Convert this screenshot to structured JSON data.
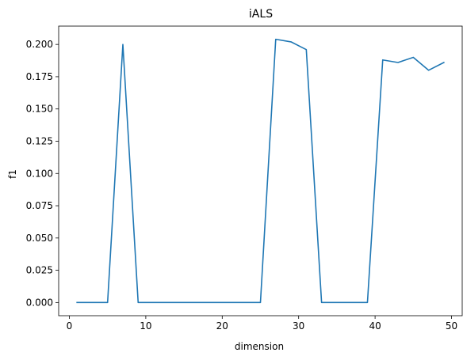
{
  "chart_data": {
    "type": "line",
    "title": "iALS",
    "xlabel": "dimension",
    "ylabel": "f1",
    "xlim": [
      -1.4,
      51.4
    ],
    "ylim": [
      -0.0102,
      0.2142
    ],
    "grid": false,
    "x_ticks": [
      0,
      10,
      20,
      30,
      40,
      50
    ],
    "x_tick_labels": [
      "0",
      "10",
      "20",
      "30",
      "40",
      "50"
    ],
    "y_ticks": [
      0.0,
      0.025,
      0.05,
      0.075,
      0.1,
      0.125,
      0.15,
      0.175,
      0.2
    ],
    "y_tick_labels": [
      "0.000",
      "0.025",
      "0.050",
      "0.075",
      "0.100",
      "0.125",
      "0.150",
      "0.175",
      "0.200"
    ],
    "series": [
      {
        "color": "#1f77b4",
        "x": [
          1,
          3,
          5,
          7,
          9,
          11,
          13,
          15,
          17,
          19,
          21,
          23,
          25,
          27,
          29,
          31,
          33,
          35,
          37,
          39,
          41,
          43,
          45,
          47,
          49
        ],
        "y": [
          0.0,
          0.0,
          0.0,
          0.2,
          0.0,
          0.0,
          0.0,
          0.0,
          0.0,
          0.0,
          0.0,
          0.0,
          0.0,
          0.204,
          0.202,
          0.196,
          0.0,
          0.0,
          0.0,
          0.0,
          0.188,
          0.186,
          0.19,
          0.18,
          0.186
        ]
      }
    ]
  }
}
